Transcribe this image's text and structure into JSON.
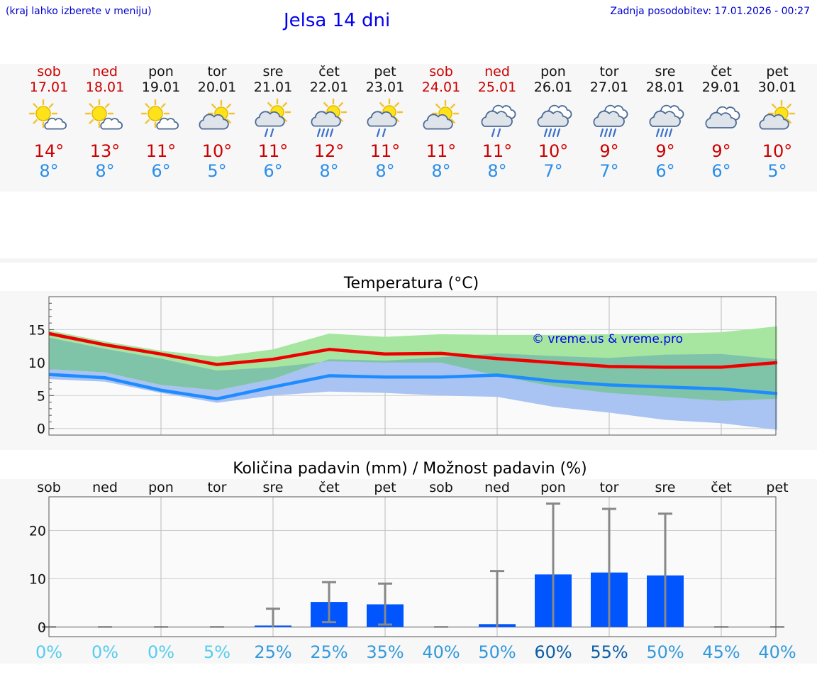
{
  "header": {
    "hint": "(kraj lahko izberete v meniju)",
    "title": "Jelsa 14 dni",
    "updated": "Zadnja posodobitev: 17.01.2026 - 00:27"
  },
  "days": [
    {
      "name": "sob",
      "date": "17.01",
      "weekend": true,
      "icon": "sun-partly-cloudy-icon",
      "max": "14°",
      "min": "8°"
    },
    {
      "name": "ned",
      "date": "18.01",
      "weekend": true,
      "icon": "sun-partly-cloudy-icon",
      "max": "13°",
      "min": "8°"
    },
    {
      "name": "pon",
      "date": "19.01",
      "weekend": false,
      "icon": "sun-partly-cloudy-icon",
      "max": "11°",
      "min": "6°"
    },
    {
      "name": "tor",
      "date": "20.01",
      "weekend": false,
      "icon": "cloud-sun-icon",
      "max": "10°",
      "min": "5°"
    },
    {
      "name": "sre",
      "date": "21.01",
      "weekend": false,
      "icon": "sun-cloud-light-rain-icon",
      "max": "11°",
      "min": "6°"
    },
    {
      "name": "čet",
      "date": "22.01",
      "weekend": false,
      "icon": "sun-cloud-rain-icon",
      "max": "12°",
      "min": "8°"
    },
    {
      "name": "pet",
      "date": "23.01",
      "weekend": false,
      "icon": "sun-cloud-light-rain-icon",
      "max": "11°",
      "min": "8°"
    },
    {
      "name": "sob",
      "date": "24.01",
      "weekend": true,
      "icon": "cloud-sun-icon",
      "max": "11°",
      "min": "8°"
    },
    {
      "name": "ned",
      "date": "25.01",
      "weekend": true,
      "icon": "cloud-light-rain-icon",
      "max": "11°",
      "min": "8°"
    },
    {
      "name": "pon",
      "date": "26.01",
      "weekend": false,
      "icon": "cloud-rain-icon",
      "max": "10°",
      "min": "7°"
    },
    {
      "name": "tor",
      "date": "27.01",
      "weekend": false,
      "icon": "cloud-rain-icon",
      "max": "9°",
      "min": "7°"
    },
    {
      "name": "sre",
      "date": "28.01",
      "weekend": false,
      "icon": "cloud-rain-icon",
      "max": "9°",
      "min": "6°"
    },
    {
      "name": "čet",
      "date": "29.01",
      "weekend": false,
      "icon": "cloud-overcast-icon",
      "max": "9°",
      "min": "6°"
    },
    {
      "name": "pet",
      "date": "30.01",
      "weekend": false,
      "icon": "cloud-sun-icon",
      "max": "10°",
      "min": "5°"
    }
  ],
  "colors": {
    "weekend": "#cc0000",
    "max_line": "#ee0000",
    "min_line": "#1e8cff",
    "max_band": "#a6e6a0",
    "min_band": "#a9c3f3",
    "overlap_band": "#7fc4a8",
    "bar": "#0055ff",
    "whisker": "#888888"
  },
  "chart_data": [
    {
      "type": "line",
      "title": "Temperatura (°C)",
      "watermark": "© vreme.us & vreme.pro",
      "x": [
        0,
        1,
        2,
        3,
        4,
        5,
        6,
        7,
        8,
        9,
        10,
        11,
        12,
        13
      ],
      "ylim": [
        -1,
        20
      ],
      "yticks": [
        0,
        5,
        10,
        15
      ],
      "series": [
        {
          "name": "max",
          "values": [
            14.4,
            12.7,
            11.3,
            9.7,
            10.5,
            12.0,
            11.3,
            11.4,
            10.6,
            10.0,
            9.4,
            9.3,
            9.3,
            10.0
          ]
        },
        {
          "name": "min",
          "values": [
            8.2,
            7.7,
            5.8,
            4.5,
            6.3,
            8.0,
            7.8,
            7.8,
            8.1,
            7.2,
            6.6,
            6.3,
            6.0,
            5.3
          ]
        }
      ],
      "bands": [
        {
          "name": "max_range",
          "low": [
            13.8,
            12.1,
            10.6,
            8.8,
            9.3,
            10.2,
            10.0,
            10.0,
            8.0,
            6.4,
            5.4,
            4.8,
            4.2,
            4.5
          ],
          "high": [
            14.9,
            13.2,
            11.8,
            10.9,
            12.0,
            14.4,
            13.9,
            14.3,
            14.2,
            14.2,
            14.3,
            14.4,
            14.6,
            15.5
          ]
        },
        {
          "name": "min_range",
          "low": [
            7.5,
            7.1,
            5.4,
            3.9,
            5.0,
            5.6,
            5.4,
            5.0,
            4.8,
            3.3,
            2.4,
            1.3,
            0.8,
            -0.2
          ],
          "high": [
            9.0,
            8.5,
            6.6,
            5.8,
            7.5,
            10.5,
            10.3,
            10.8,
            11.4,
            11.0,
            10.7,
            11.2,
            11.3,
            10.5
          ]
        }
      ]
    },
    {
      "type": "bar",
      "title": "Količina padavin (mm) / Možnost padavin (%)",
      "categories": [
        "sob",
        "ned",
        "pon",
        "tor",
        "sre",
        "čet",
        "pet",
        "sob",
        "ned",
        "pon",
        "tor",
        "sre",
        "čet",
        "pet"
      ],
      "ylim": [
        -2,
        27
      ],
      "yticks": [
        0,
        10,
        20
      ],
      "values": [
        0,
        0,
        0,
        0,
        0.3,
        5.2,
        4.7,
        0,
        0.6,
        10.9,
        11.3,
        10.7,
        0,
        0
      ],
      "err_low": [
        0,
        0,
        0,
        0,
        0,
        1.0,
        0.5,
        0,
        0,
        0,
        0,
        0,
        0,
        0
      ],
      "err_high": [
        0,
        0,
        0,
        0,
        3.8,
        9.3,
        9.0,
        0,
        11.6,
        25.6,
        24.5,
        23.5,
        0,
        0
      ],
      "probability": [
        "0%",
        "0%",
        "0%",
        "5%",
        "25%",
        "25%",
        "35%",
        "40%",
        "50%",
        "60%",
        "55%",
        "50%",
        "45%",
        "40%"
      ],
      "probability_colors": [
        "#55ccee",
        "#55ccee",
        "#55ccee",
        "#55ccee",
        "#3399dd",
        "#3399dd",
        "#3399dd",
        "#3399dd",
        "#3399dd",
        "#0b5ea8",
        "#0b5ea8",
        "#3399dd",
        "#3399dd",
        "#3399dd"
      ]
    }
  ]
}
